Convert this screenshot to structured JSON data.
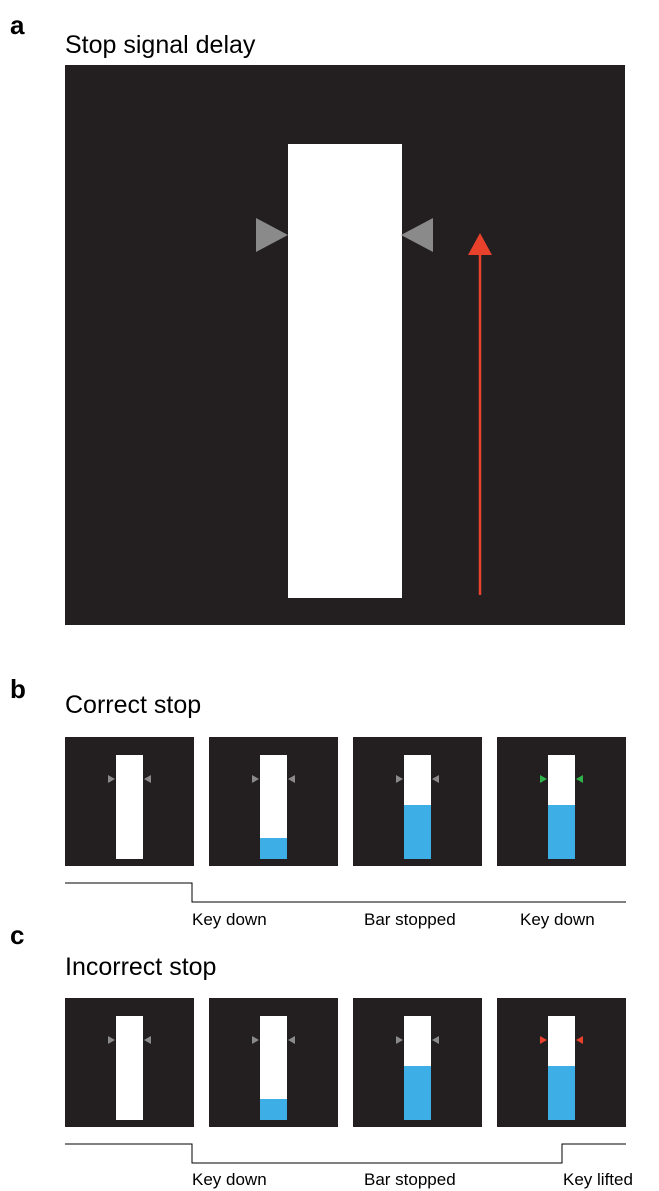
{
  "panel_a": {
    "letter": "a",
    "title": "Stop signal delay"
  },
  "panel_b": {
    "letter": "b",
    "title": "Correct stop",
    "frames": [
      {
        "fill_fraction": 0.0,
        "marker_color": "#8a8a8a"
      },
      {
        "fill_fraction": 0.2,
        "marker_color": "#8a8a8a"
      },
      {
        "fill_fraction": 0.52,
        "marker_color": "#8a8a8a"
      },
      {
        "fill_fraction": 0.52,
        "marker_color": "#2db34a"
      }
    ],
    "events": [
      "Key down",
      "Bar stopped",
      "Key down"
    ]
  },
  "panel_c": {
    "letter": "c",
    "title": "Incorrect stop",
    "frames": [
      {
        "fill_fraction": 0.0,
        "marker_color": "#8a8a8a"
      },
      {
        "fill_fraction": 0.2,
        "marker_color": "#8a8a8a"
      },
      {
        "fill_fraction": 0.52,
        "marker_color": "#8a8a8a"
      },
      {
        "fill_fraction": 0.52,
        "marker_color": "#e8412c"
      }
    ],
    "events": [
      "Key down",
      "Bar stopped",
      "Key lifted"
    ]
  },
  "colors": {
    "screen": "#231f20",
    "bar": "#ffffff",
    "fill": "#3daee6",
    "arrow": "#e8412c",
    "marker_neutral": "#8a8a8a",
    "marker_success": "#2db34a",
    "marker_failure": "#e8412c"
  }
}
